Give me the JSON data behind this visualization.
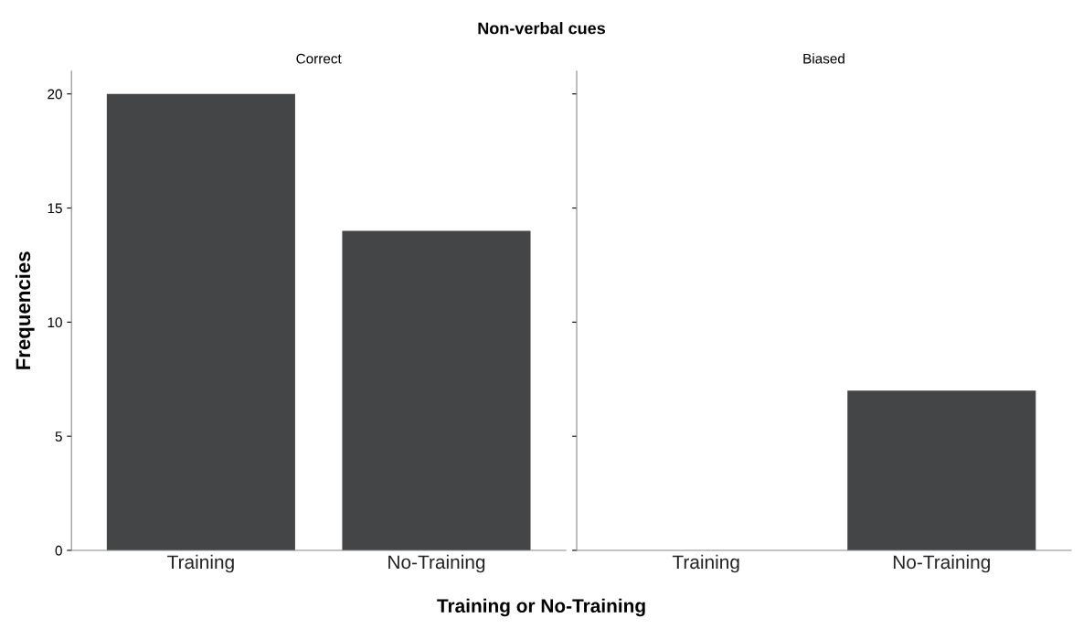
{
  "chart_data": [
    {
      "type": "bar",
      "title": "Non-verbal cues",
      "subtitle": "Correct",
      "xlabel": "Training or No-Training",
      "ylabel": "Frequencies",
      "categories": [
        "Training",
        "No-Training"
      ],
      "values": [
        20,
        14
      ],
      "color": "#434547",
      "ylim": [
        0,
        21
      ],
      "yticks": [
        0,
        5,
        10,
        15,
        20
      ],
      "grid": false
    },
    {
      "type": "bar",
      "subtitle": "Biased",
      "categories": [
        "Training",
        "No-Training"
      ],
      "values": [
        0,
        7
      ],
      "color": "#434547",
      "ylim": [
        0,
        21
      ],
      "yticks": [
        0,
        5,
        10,
        15,
        20
      ],
      "grid": false,
      "tick_labels": "x"
    }
  ]
}
